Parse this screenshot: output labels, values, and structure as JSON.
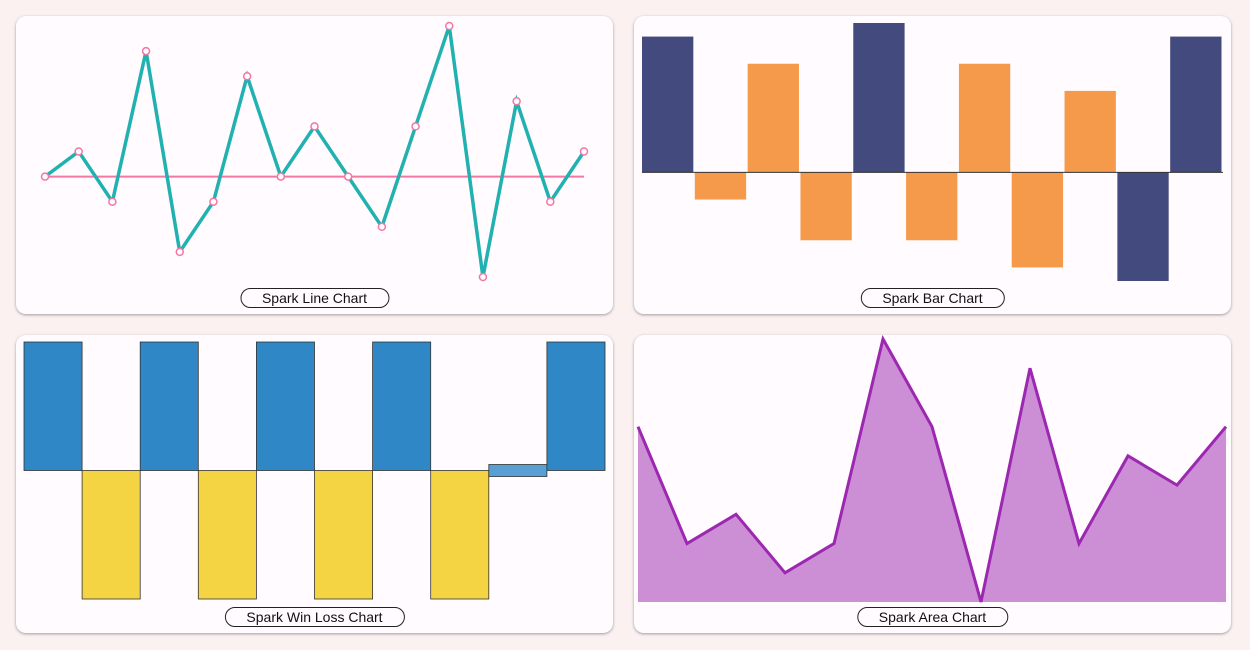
{
  "colors": {
    "background": "#fbf1f1",
    "card": "#fffbfe",
    "line_series": "#20b1b0",
    "line_axis": "#f377a3",
    "line_marker": "#f377a3",
    "bar_positive_high": "#434a7e",
    "bar_other": "#f59a4a",
    "winloss_win": "#2f87c5",
    "winloss_loss": "#f5d443",
    "winloss_tie": "#58a0d3",
    "area_fill": "#cc8fd6",
    "area_stroke": "#9c27b0"
  },
  "chart_data": [
    {
      "id": "line",
      "type": "line",
      "label": "Spark Line Chart",
      "x": [
        0,
        1,
        2,
        3,
        4,
        5,
        6,
        7,
        8,
        9,
        10,
        11,
        12,
        13,
        14,
        15,
        16
      ],
      "values": [
        0,
        1,
        -1,
        5,
        -3,
        -1,
        4,
        0,
        2,
        0,
        -2,
        2,
        6,
        -4,
        3,
        -1,
        1
      ],
      "reference_line": 0,
      "markers": true,
      "ylim": [
        -4,
        6
      ]
    },
    {
      "id": "bar",
      "type": "bar",
      "label": "Spark Bar Chart",
      "values": [
        5,
        -1,
        4,
        -2.5,
        5.5,
        -2.5,
        4,
        -3.5,
        3,
        -4,
        5
      ],
      "ylim": [
        -4,
        5.5
      ]
    },
    {
      "id": "winloss",
      "type": "bar",
      "subtype": "win-loss",
      "label": "Spark Win Loss Chart",
      "values": [
        1,
        -1,
        1,
        -1,
        1,
        -1,
        1,
        -1,
        0,
        1
      ],
      "ylim": [
        -1,
        1
      ]
    },
    {
      "id": "area",
      "type": "area",
      "label": "Spark Area Chart",
      "x": [
        0,
        1,
        2,
        3,
        4,
        5,
        6,
        7,
        8,
        9,
        10,
        11,
        12
      ],
      "values": [
        6,
        2,
        3,
        1,
        2,
        9,
        6,
        0,
        8,
        2,
        5,
        4,
        6
      ],
      "ylim": [
        0,
        9
      ]
    }
  ]
}
